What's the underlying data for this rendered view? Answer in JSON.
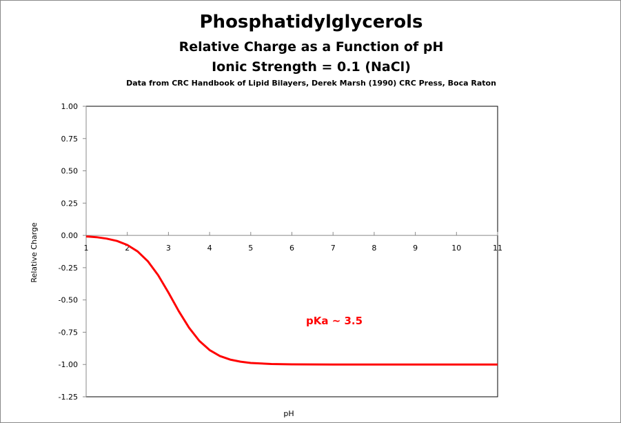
{
  "chart_data": {
    "type": "line",
    "title": "Phosphatidylglycerols",
    "subtitles": [
      "Relative Charge as a Function of pH",
      "Ionic Strength = 0.1 (NaCl)"
    ],
    "source": "Data from CRC Handbook of Lipid Bilayers, Derek Marsh (1990) CRC Press, Boca Raton",
    "xlabel": "pH",
    "ylabel": "Relative Charge",
    "xlim": [
      1,
      11
    ],
    "ylim": [
      -1.25,
      1.0
    ],
    "xticks": [
      "1",
      "2",
      "3",
      "4",
      "5",
      "6",
      "7",
      "8",
      "9",
      "10",
      "11"
    ],
    "yticks": [
      "1.00",
      "0.75",
      "0.50",
      "0.25",
      "0.00",
      "-0.25",
      "-0.50",
      "-0.75",
      "-1.00",
      "-1.25"
    ],
    "grid": false,
    "annotation": "pKa ~ 3.5",
    "series": [
      {
        "color": "#ff0000",
        "x": [
          1,
          1.25,
          1.5,
          1.75,
          2,
          2.25,
          2.5,
          2.75,
          3,
          3.25,
          3.5,
          3.75,
          4,
          4.25,
          4.5,
          4.75,
          5,
          5.5,
          6,
          7,
          8,
          9,
          10,
          11
        ],
        "y": [
          -0.008,
          -0.014,
          -0.025,
          -0.043,
          -0.074,
          -0.124,
          -0.201,
          -0.309,
          -0.443,
          -0.586,
          -0.715,
          -0.817,
          -0.888,
          -0.934,
          -0.962,
          -0.978,
          -0.988,
          -0.996,
          -0.999,
          -1.0,
          -1.0,
          -1.0,
          -1.0,
          -1.0
        ]
      }
    ]
  }
}
